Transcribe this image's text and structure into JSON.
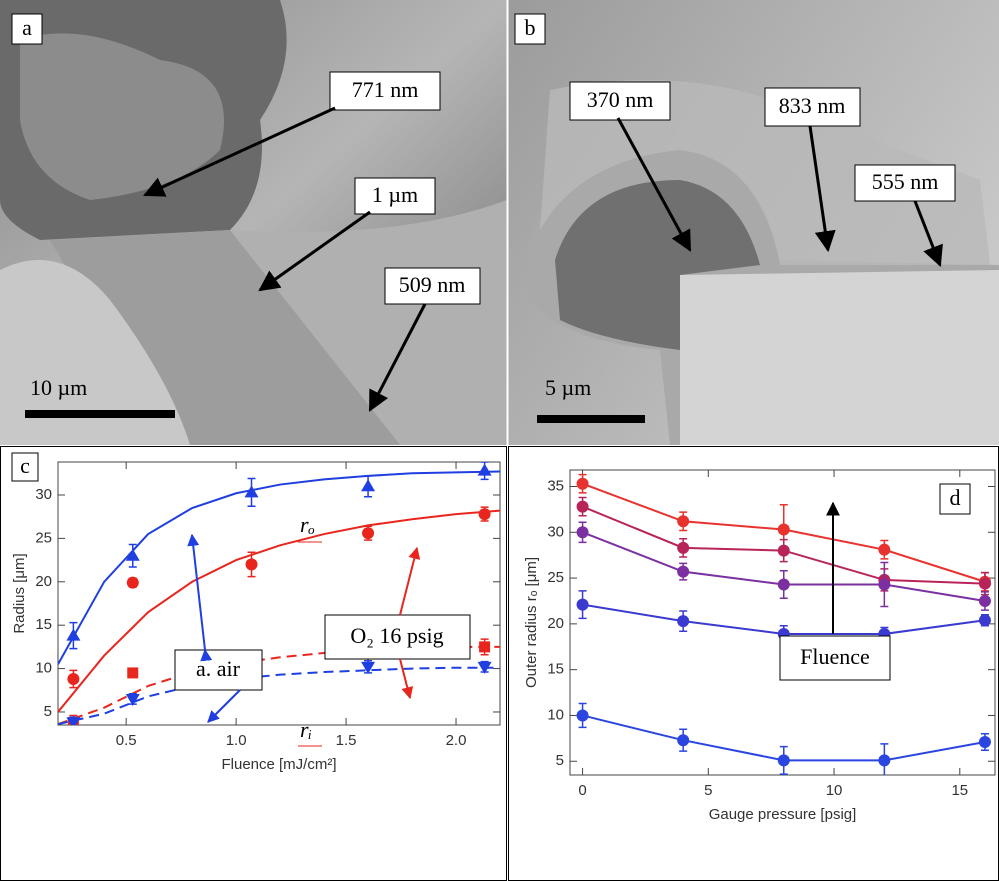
{
  "panels": {
    "a": {
      "label": "a",
      "annotations": [
        "771 nm",
        "1 µm",
        "509 nm"
      ],
      "scale_bar": "10 µm"
    },
    "b": {
      "label": "b",
      "annotations": [
        "370 nm",
        "833 nm",
        "555 nm"
      ],
      "scale_bar": "5 µm"
    }
  },
  "chart_data": [
    {
      "type": "scatter",
      "panel_label": "c",
      "x_label": "Fluence [mJ/cm²]",
      "y_label": "Radius [μm]",
      "xlim": [
        0.19,
        2.2
      ],
      "xticks": [
        0.5,
        {
          "value": 1,
          "label": "1.0"
        },
        1.5,
        {
          "value": 2,
          "label": "2.0"
        }
      ],
      "ylim": [
        3.5,
        33.8
      ],
      "yticks": [
        5,
        10,
        15,
        20,
        25,
        30
      ],
      "x": [
        0.26,
        0.53,
        1.07,
        1.6,
        2.13
      ],
      "series": [
        {
          "color": "#1f3fe0",
          "marker": "triangle-up",
          "values": [
            13.8,
            23,
            30.3,
            31,
            32.8
          ],
          "errors": [
            1.5,
            1.3,
            1.6,
            1.2,
            1
          ]
        },
        {
          "color": "#e8261e",
          "marker": "circle",
          "values": [
            8.8,
            19.9,
            22,
            25.6,
            27.8
          ],
          "errors": [
            1,
            0.5,
            1.4,
            0.8,
            0.8
          ]
        },
        {
          "color": "#e8261e",
          "marker": "square",
          "values": [
            3.8,
            9.5,
            10.6,
            11.8,
            12.5
          ],
          "errors": [
            0.8,
            0.4,
            0.9,
            0.9,
            0.9
          ]
        },
        {
          "color": "#1f3fe0",
          "marker": "triangle-down",
          "values": [
            3.8,
            6.5,
            8.6,
            10.2,
            10.2
          ],
          "errors": [
            0.6,
            0.6,
            0.6,
            0.7,
            0.6
          ]
        }
      ],
      "fit_x": [
        0.19,
        0.4,
        0.6,
        0.8,
        1,
        1.2,
        1.4,
        1.6,
        1.8,
        2,
        2.2
      ],
      "fits": [
        {
          "color": "#1f3fe0",
          "dashed": false,
          "values": [
            10.5,
            20,
            25.5,
            28.5,
            30.2,
            31.2,
            31.8,
            32.2,
            32.5,
            32.6,
            32.7
          ]
        },
        {
          "color": "#e8261e",
          "dashed": false,
          "values": [
            5,
            11.5,
            16.5,
            20,
            22.5,
            24.2,
            25.5,
            26.5,
            27.2,
            27.8,
            28.2
          ]
        },
        {
          "color": "#e8261e",
          "dashed": true,
          "values": [
            3.6,
            5.5,
            8,
            9.6,
            10.6,
            11.3,
            11.8,
            12.1,
            12.3,
            12.5,
            12.5
          ]
        },
        {
          "color": "#1f3fe0",
          "dashed": true,
          "values": [
            3.6,
            4.8,
            6.8,
            8,
            8.8,
            9.3,
            9.6,
            9.8,
            10,
            10.1,
            10.1
          ]
        }
      ],
      "annotations": [
        "rₒ",
        "rᵢ",
        "a. air",
        "O₂ 16 psig"
      ]
    },
    {
      "type": "line",
      "panel_label": "d",
      "x_label": "Gauge pressure [psig]",
      "y_label": "Outer radius  rₒ [μm]",
      "xlim": [
        -0.5,
        16.4
      ],
      "xticks": [
        0,
        5,
        10,
        15
      ],
      "ylim": [
        3.5,
        36.8
      ],
      "yticks": [
        5,
        10,
        15,
        20,
        25,
        30,
        35
      ],
      "x": [
        0,
        4,
        8,
        12,
        16
      ],
      "series": [
        {
          "color": "#e8322e",
          "marker": "circle",
          "values": [
            35.3,
            31.2,
            30.3,
            28.1,
            24.6
          ],
          "errors": [
            1,
            1,
            2.7,
            1,
            1
          ]
        },
        {
          "color": "#b8245a",
          "marker": "circle",
          "values": [
            32.8,
            28.3,
            28,
            24.8,
            24.4
          ],
          "errors": [
            1,
            1,
            1.2,
            1.2,
            1.2
          ]
        },
        {
          "color": "#7b2fa0",
          "marker": "circle",
          "values": [
            30,
            25.7,
            24.3,
            24.3,
            22.5
          ],
          "errors": [
            1.1,
            0.9,
            1.5,
            2.4,
            1
          ]
        },
        {
          "color": "#3a3ad0",
          "marker": "circle",
          "values": [
            22.1,
            20.3,
            18.9,
            18.9,
            20.4
          ],
          "errors": [
            1.5,
            1.1,
            0.9,
            0.7,
            0.6
          ]
        },
        {
          "color": "#2a45e0",
          "marker": "circle",
          "values": [
            10,
            7.3,
            5.1,
            5.1,
            7.1
          ],
          "errors": [
            1.3,
            1.2,
            1.5,
            1.8,
            0.9
          ]
        }
      ],
      "annotations": [
        "Fluence"
      ]
    }
  ]
}
